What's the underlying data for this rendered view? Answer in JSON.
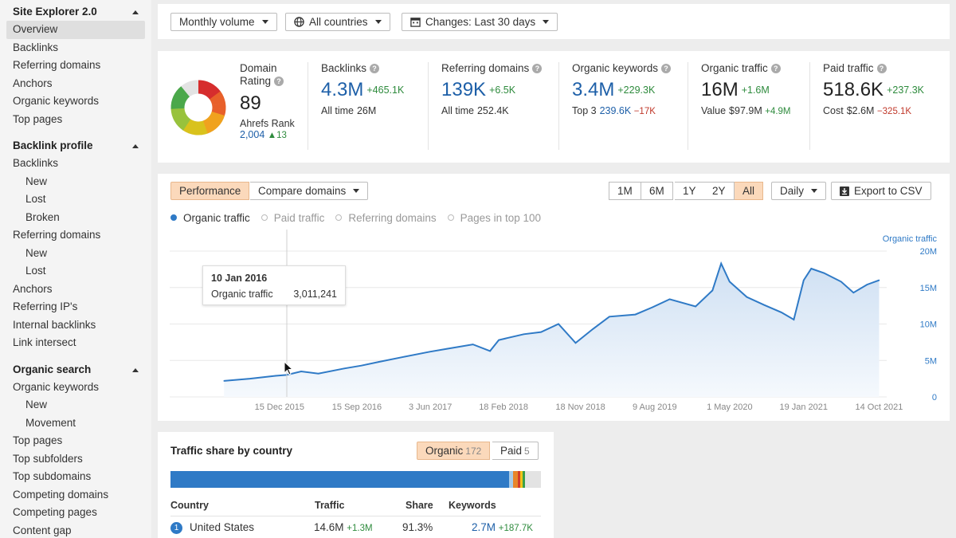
{
  "sidebar": {
    "sections": [
      {
        "title": "Site Explorer 2.0",
        "items": [
          {
            "label": "Overview",
            "active": true
          },
          {
            "label": "Backlinks"
          },
          {
            "label": "Referring domains"
          },
          {
            "label": "Anchors"
          },
          {
            "label": "Organic keywords"
          },
          {
            "label": "Top pages"
          }
        ]
      },
      {
        "title": "Backlink profile",
        "items": [
          {
            "label": "Backlinks"
          },
          {
            "label": "New",
            "sub": true
          },
          {
            "label": "Lost",
            "sub": true
          },
          {
            "label": "Broken",
            "sub": true
          },
          {
            "label": "Referring domains"
          },
          {
            "label": "New",
            "sub": true
          },
          {
            "label": "Lost",
            "sub": true
          },
          {
            "label": "Anchors"
          },
          {
            "label": "Referring IP's"
          },
          {
            "label": "Internal backlinks"
          },
          {
            "label": "Link intersect"
          }
        ]
      },
      {
        "title": "Organic search",
        "items": [
          {
            "label": "Organic keywords"
          },
          {
            "label": "New",
            "sub": true
          },
          {
            "label": "Movement",
            "sub": true
          },
          {
            "label": "Top pages"
          },
          {
            "label": "Top subfolders"
          },
          {
            "label": "Top subdomains"
          },
          {
            "label": "Competing domains"
          },
          {
            "label": "Competing pages"
          },
          {
            "label": "Content gap"
          }
        ]
      }
    ]
  },
  "filters": {
    "volume": "Monthly volume",
    "countries": "All countries",
    "changes": "Changes: Last 30 days"
  },
  "metrics": {
    "domain_rating": {
      "label": "Domain Rating",
      "value": "89",
      "ahrefs_rank_label": "Ahrefs Rank",
      "ahrefs_rank": "2,004",
      "ahrefs_rank_delta": "▲13",
      "gauge_fraction": 0.89
    },
    "backlinks": {
      "label": "Backlinks",
      "value": "4.3M",
      "delta": "+465.1K",
      "sub_label": "All time",
      "sub_value": "26M"
    },
    "referring_domains": {
      "label": "Referring domains",
      "value": "139K",
      "delta": "+6.5K",
      "sub_label": "All time",
      "sub_value": "252.4K"
    },
    "organic_keywords": {
      "label": "Organic keywords",
      "value": "3.4M",
      "delta": "+229.3K",
      "sub_label": "Top 3",
      "sub_value": "239.6K",
      "sub_delta": "−17K"
    },
    "organic_traffic": {
      "label": "Organic traffic",
      "value": "16M",
      "delta": "+1.6M",
      "sub_label": "Value",
      "sub_value": "$97.9M",
      "sub_delta": "+4.9M"
    },
    "paid_traffic": {
      "label": "Paid traffic",
      "value": "518.6K",
      "delta": "+237.3K",
      "sub_label": "Cost",
      "sub_value": "$2.6M",
      "sub_delta": "−325.1K"
    }
  },
  "chart_controls": {
    "performance": "Performance",
    "compare": "Compare domains",
    "ranges": [
      "1M",
      "6M",
      "1Y",
      "2Y",
      "All"
    ],
    "active_range": "All",
    "granularity": "Daily",
    "export": "Export to CSV"
  },
  "legend": [
    "Organic traffic",
    "Paid traffic",
    "Referring domains",
    "Pages in top 100"
  ],
  "tooltip": {
    "date": "10 Jan 2016",
    "label": "Organic traffic",
    "value": "3,011,241"
  },
  "chart_data": {
    "type": "area",
    "series": [
      {
        "name": "Organic traffic",
        "color": "#2f7ac6"
      }
    ],
    "ylabel": "Organic traffic",
    "yticks": [
      "0",
      "5M",
      "10M",
      "15M",
      "20M"
    ],
    "ylim": [
      0,
      20000000
    ],
    "xticks": [
      "15 Dec 2015",
      "15 Sep 2016",
      "3 Jun 2017",
      "18 Feb 2018",
      "18 Nov 2018",
      "9 Aug 2019",
      "1 May 2020",
      "19 Jan 2021",
      "14 Oct 2021"
    ],
    "grid": true,
    "points": [
      [
        "2015-06-01",
        2200000
      ],
      [
        "2015-09-01",
        2500000
      ],
      [
        "2015-12-01",
        2900000
      ],
      [
        "2016-01-10",
        3011241
      ],
      [
        "2016-03-01",
        3500000
      ],
      [
        "2016-05-01",
        3200000
      ],
      [
        "2016-08-01",
        3900000
      ],
      [
        "2016-10-01",
        4300000
      ],
      [
        "2016-12-01",
        4800000
      ],
      [
        "2017-03-01",
        5500000
      ],
      [
        "2017-06-01",
        6200000
      ],
      [
        "2017-08-01",
        6600000
      ],
      [
        "2017-11-01",
        7200000
      ],
      [
        "2018-01-01",
        6300000
      ],
      [
        "2018-02-01",
        7800000
      ],
      [
        "2018-05-01",
        8600000
      ],
      [
        "2018-07-01",
        8900000
      ],
      [
        "2018-09-01",
        10000000
      ],
      [
        "2018-11-01",
        7400000
      ],
      [
        "2019-01-01",
        9300000
      ],
      [
        "2019-03-01",
        11000000
      ],
      [
        "2019-06-01",
        11300000
      ],
      [
        "2019-08-01",
        12300000
      ],
      [
        "2019-10-01",
        13400000
      ],
      [
        "2020-01-01",
        12400000
      ],
      [
        "2020-03-01",
        14600000
      ],
      [
        "2020-04-01",
        18300000
      ],
      [
        "2020-05-01",
        15800000
      ],
      [
        "2020-07-01",
        13700000
      ],
      [
        "2020-09-01",
        12600000
      ],
      [
        "2020-11-01",
        11600000
      ],
      [
        "2020-12-15",
        10600000
      ],
      [
        "2021-01-19",
        16000000
      ],
      [
        "2021-02-15",
        17600000
      ],
      [
        "2021-04-01",
        17000000
      ],
      [
        "2021-06-01",
        15800000
      ],
      [
        "2021-07-15",
        14300000
      ],
      [
        "2021-09-01",
        15400000
      ],
      [
        "2021-10-14",
        16000000
      ]
    ]
  },
  "traffic_share": {
    "title": "Traffic share by country",
    "organic_label": "Organic",
    "organic_count": "172",
    "paid_label": "Paid",
    "paid_count": "5",
    "segments": [
      {
        "share": 0.913,
        "color": "#2f7ac6"
      },
      {
        "share": 0.012,
        "color": "#a8cbe8"
      },
      {
        "share": 0.012,
        "color": "#e8862a"
      },
      {
        "share": 0.008,
        "color": "#d23c2b"
      },
      {
        "share": 0.006,
        "color": "#f0c419"
      },
      {
        "share": 0.006,
        "color": "#3aa04a"
      }
    ],
    "columns": [
      "Country",
      "Traffic",
      "Share",
      "Keywords"
    ],
    "rows": [
      {
        "rank": "1",
        "country": "United States",
        "traffic": "14.6M",
        "traffic_delta": "+1.3M",
        "share": "91.3%",
        "keywords": "2.7M",
        "keywords_delta": "+187.7K"
      }
    ]
  }
}
